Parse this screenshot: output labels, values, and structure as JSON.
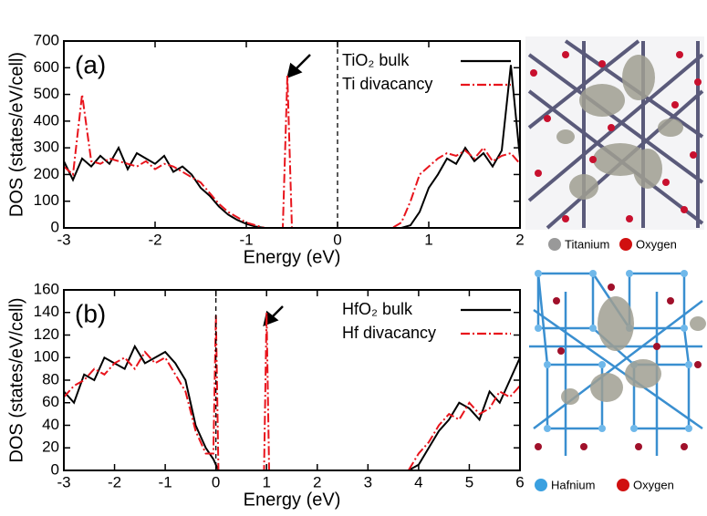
{
  "chart_data": [
    {
      "type": "line",
      "annotation": "(a)",
      "xlabel": "Energy (eV)",
      "ylabel": "DOS (states/eV/cell)",
      "x": [
        -3,
        -2.9,
        -2.8,
        -2.7,
        -2.6,
        -2.5,
        -2.4,
        -2.3,
        -2.2,
        -2.1,
        -2,
        -1.9,
        -1.8,
        -1.7,
        -1.6,
        -1.5,
        -1.4,
        -1.3,
        -1.2,
        -1.1,
        -1,
        -0.9,
        -0.8,
        -0.7,
        -0.6,
        -0.55,
        -0.5,
        -0.4,
        -0.3,
        -0.2,
        -0.1,
        0,
        0.1,
        0.2,
        0.3,
        0.4,
        0.5,
        0.6,
        0.7,
        0.8,
        0.9,
        1,
        1.1,
        1.2,
        1.3,
        1.4,
        1.5,
        1.6,
        1.7,
        1.8,
        1.9,
        2
      ],
      "series": [
        {
          "name": "TiO₂ bulk",
          "color": "#000000",
          "dash": "solid",
          "values": [
            250,
            180,
            260,
            230,
            270,
            240,
            300,
            220,
            280,
            260,
            240,
            270,
            210,
            230,
            200,
            150,
            120,
            80,
            50,
            30,
            15,
            5,
            0,
            0,
            0,
            0,
            0,
            0,
            0,
            0,
            0,
            0,
            0,
            0,
            0,
            0,
            0,
            0,
            0,
            10,
            60,
            150,
            200,
            260,
            240,
            300,
            250,
            280,
            230,
            290,
            610,
            260
          ]
        },
        {
          "name": "Ti divacancy",
          "color": "#e8141c",
          "dash": "dashdot",
          "values": [
            230,
            200,
            500,
            250,
            240,
            260,
            250,
            240,
            230,
            250,
            220,
            240,
            230,
            210,
            190,
            170,
            130,
            90,
            60,
            40,
            20,
            10,
            0,
            0,
            0,
            570,
            0,
            0,
            0,
            0,
            0,
            0,
            0,
            0,
            0,
            0,
            0,
            0,
            20,
            100,
            200,
            230,
            260,
            280,
            270,
            290,
            260,
            300,
            250,
            270,
            280,
            240
          ]
        }
      ],
      "xlim": [
        -3,
        2
      ],
      "xticks": [
        -3,
        -2,
        -1,
        0,
        1,
        2
      ],
      "ylim": [
        0,
        700
      ],
      "yticks": [
        0,
        100,
        200,
        300,
        400,
        500,
        600,
        700
      ],
      "vline": 0,
      "legend": "upper right",
      "image_legend": [
        "Titanium",
        "Oxygen"
      ]
    },
    {
      "type": "line",
      "annotation": "(b)",
      "xlabel": "Energy (eV)",
      "ylabel": "DOS (states/eV/cell)",
      "x": [
        -3,
        -2.8,
        -2.6,
        -2.4,
        -2.2,
        -2,
        -1.8,
        -1.6,
        -1.4,
        -1.2,
        -1,
        -0.8,
        -0.6,
        -0.4,
        -0.2,
        -0.05,
        0,
        0.05,
        0.2,
        0.4,
        0.6,
        0.8,
        0.95,
        1,
        1.05,
        1.2,
        1.4,
        1.6,
        1.8,
        2,
        2.2,
        2.4,
        2.6,
        2.8,
        3,
        3.2,
        3.4,
        3.6,
        3.8,
        4,
        4.2,
        4.4,
        4.6,
        4.8,
        5,
        5.2,
        5.4,
        5.6,
        5.8,
        6
      ],
      "series": [
        {
          "name": "HfO₂ bulk",
          "color": "#000000",
          "dash": "solid",
          "values": [
            70,
            60,
            85,
            80,
            100,
            95,
            90,
            110,
            95,
            100,
            105,
            95,
            80,
            40,
            20,
            10,
            5,
            0,
            0,
            0,
            0,
            0,
            0,
            0,
            0,
            0,
            0,
            0,
            0,
            0,
            0,
            0,
            0,
            0,
            0,
            0,
            0,
            0,
            0,
            5,
            20,
            35,
            45,
            60,
            55,
            45,
            70,
            60,
            80,
            100
          ]
        },
        {
          "name": "Hf divacancy",
          "color": "#e8141c",
          "dash": "dashdot",
          "values": [
            65,
            75,
            80,
            90,
            85,
            95,
            100,
            90,
            105,
            95,
            100,
            85,
            70,
            35,
            15,
            15,
            138,
            0,
            0,
            0,
            0,
            0,
            0,
            140,
            0,
            0,
            0,
            0,
            0,
            0,
            0,
            0,
            0,
            0,
            0,
            0,
            0,
            0,
            0,
            15,
            25,
            40,
            50,
            45,
            60,
            50,
            55,
            70,
            65,
            75
          ]
        }
      ],
      "xlim": [
        -3,
        6
      ],
      "xticks": [
        -3,
        -2,
        -1,
        0,
        1,
        2,
        3,
        4,
        5,
        6
      ],
      "ylim": [
        0,
        160
      ],
      "yticks": [
        0,
        20,
        40,
        60,
        80,
        100,
        120,
        140,
        160
      ],
      "vline": 0,
      "legend": "upper right",
      "image_legend": [
        "Hafnium",
        "Oxygen"
      ]
    }
  ]
}
